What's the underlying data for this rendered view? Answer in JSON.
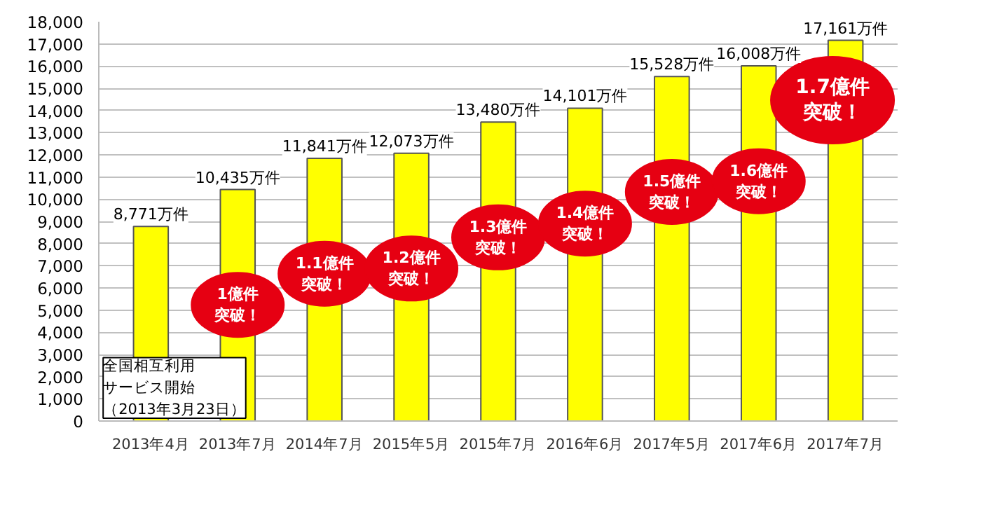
{
  "chart_data": {
    "type": "bar",
    "categories": [
      "2013年4月",
      "2013年7月",
      "2014年7月",
      "2015年5月",
      "2015年7月",
      "2016年6月",
      "2017年5月",
      "2017年6月",
      "2017年7月"
    ],
    "values": [
      8771,
      10435,
      11841,
      12073,
      13480,
      14101,
      15528,
      16008,
      17161
    ],
    "value_labels": [
      "8,771万件",
      "10,435万件",
      "11,841万件",
      "12,073万件",
      "13,480万件",
      "14,101万件",
      "15,528万件",
      "16,008万件",
      "17,161万件"
    ],
    "color": "#ffff00",
    "ylim": [
      0,
      18000
    ],
    "yticks": [
      {
        "value": 0,
        "label": "0"
      },
      {
        "value": 1000,
        "label": "1,000"
      },
      {
        "value": 2000,
        "label": "2,000"
      },
      {
        "value": 3000,
        "label": "3,000"
      },
      {
        "value": 4000,
        "label": "4,000"
      },
      {
        "value": 5000,
        "label": "5,000"
      },
      {
        "value": 6000,
        "label": "6,000"
      },
      {
        "value": 7000,
        "label": "7,000"
      },
      {
        "value": 8000,
        "label": "8,000"
      },
      {
        "value": 9000,
        "label": "9,000"
      },
      {
        "value": 10000,
        "label": "10,000"
      },
      {
        "value": 11000,
        "label": "11,000"
      },
      {
        "value": 12000,
        "label": "12,000"
      },
      {
        "value": 13000,
        "label": "13,000"
      },
      {
        "value": 14000,
        "label": "14,000"
      },
      {
        "value": 15000,
        "label": "15,000"
      },
      {
        "value": 16000,
        "label": "16,000"
      },
      {
        "value": 17000,
        "label": "17,000"
      },
      {
        "value": 18000,
        "label": "18,000"
      }
    ],
    "grid": "y",
    "annotations": [
      "全国相互利用サービス開始（2013年3月23日）",
      "1億件突破！",
      "1.1億件突破！",
      "1.2億件突破！",
      "1.3億件突破！",
      "1.4億件突破！",
      "1.5億件突破！",
      "1.6億件突破！",
      "1.7億件突破！"
    ]
  }
}
